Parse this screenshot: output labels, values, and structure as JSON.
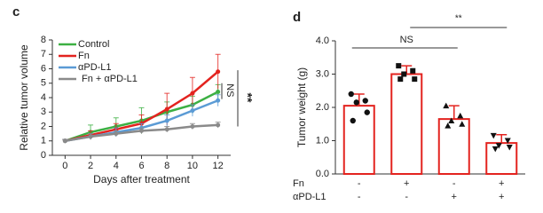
{
  "chart_data": [
    {
      "type": "line",
      "panel": "c",
      "xlabel": "Days after treatment",
      "ylabel": "Relative tumor volume",
      "x": [
        0,
        2,
        4,
        6,
        8,
        10,
        12
      ],
      "xlim": [
        -1,
        13
      ],
      "xticks": [
        0,
        2,
        4,
        6,
        8,
        10,
        12
      ],
      "ylim": [
        0,
        8
      ],
      "yticks": [
        0,
        1,
        2,
        3,
        4,
        5,
        6,
        7,
        8
      ],
      "legend": "top-left",
      "series": [
        {
          "name": "Control",
          "color": "#3cb043",
          "values": [
            1,
            1.6,
            2.0,
            2.4,
            3.0,
            3.5,
            4.4
          ],
          "errors": [
            0.1,
            0.5,
            0.6,
            0.9,
            0.7,
            0.6,
            0.5
          ]
        },
        {
          "name": "Fn",
          "color": "#e3231f",
          "values": [
            1,
            1.4,
            1.8,
            2.2,
            3.2,
            4.3,
            5.8
          ],
          "errors": [
            0.1,
            0.3,
            0.4,
            0.6,
            1.1,
            1.1,
            1.2
          ]
        },
        {
          "name": "αPD-L1",
          "color": "#5b9bd5",
          "values": [
            1,
            1.3,
            1.6,
            1.9,
            2.4,
            3.1,
            3.8
          ],
          "errors": [
            0.1,
            0.2,
            0.3,
            0.3,
            0.4,
            0.4,
            0.4
          ]
        },
        {
          "name": "Fn + αPD-L1",
          "color": "#8a8a8a",
          "values": [
            1,
            1.3,
            1.5,
            1.7,
            1.8,
            2.0,
            2.1
          ],
          "errors": [
            0.1,
            0.2,
            0.2,
            0.2,
            0.2,
            0.2,
            0.2
          ]
        }
      ],
      "annotations": [
        "NS",
        "**"
      ]
    },
    {
      "type": "bar",
      "panel": "d",
      "ylabel": "Tumor weight (g)",
      "categories": [
        null,
        null,
        null,
        null
      ],
      "values": [
        2.05,
        3.0,
        1.65,
        0.93
      ],
      "errors": [
        0.35,
        0.25,
        0.4,
        0.25
      ],
      "points": [
        [
          2.4,
          2.2,
          2.15,
          1.85,
          1.6
        ],
        [
          3.25,
          3.1,
          3.0,
          2.85,
          2.85
        ],
        [
          2.05,
          1.75,
          1.6,
          1.5,
          1.45
        ],
        [
          1.15,
          1.0,
          0.85,
          0.8,
          0.75
        ]
      ],
      "markers": [
        "circle",
        "square",
        "triangle",
        "triangle-down"
      ],
      "color": "#e3231f",
      "ylim": [
        0,
        4
      ],
      "yticks": [
        {
          "value": 0,
          "label": "0.0"
        },
        {
          "value": 1,
          "label": "1.0"
        },
        {
          "value": 2,
          "label": "2.0"
        },
        {
          "value": 3,
          "label": "3.0"
        },
        {
          "value": 4,
          "label": "4.0"
        }
      ],
      "group_table": [
        {
          "label": "Fn",
          "values": [
            "-",
            "+",
            "-",
            "+"
          ]
        },
        {
          "label": "αPD-L1",
          "values": [
            "-",
            "-",
            "+",
            "+"
          ]
        }
      ],
      "annotations": [
        "NS",
        "**"
      ]
    }
  ]
}
